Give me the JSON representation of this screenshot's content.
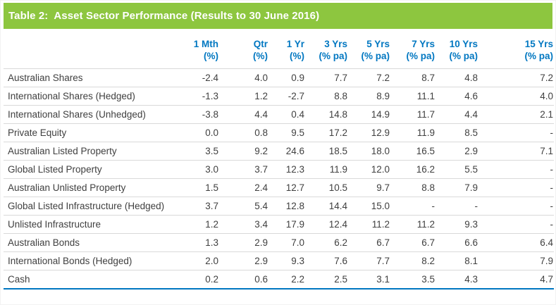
{
  "title": "Table 2:  Asset Sector Performance (Results to 30 June 2016)",
  "colors": {
    "title_bar_background": "#8DC63F",
    "title_text": "#FFFFFF",
    "column_header_text": "#0077C1",
    "row_divider": "#D9D9D9",
    "bottom_rule": "#0077C1",
    "body_text": "#3F3F3F"
  },
  "table": {
    "columns": [
      {
        "label": "1 Mth",
        "unit": "(%)"
      },
      {
        "label": "Qtr",
        "unit": "(%)"
      },
      {
        "label": "1 Yr",
        "unit": "(%)"
      },
      {
        "label": "3 Yrs",
        "unit": "(% pa)"
      },
      {
        "label": "5 Yrs",
        "unit": "(% pa)"
      },
      {
        "label": "7 Yrs",
        "unit": "(% pa)"
      },
      {
        "label": "10 Yrs",
        "unit": "(% pa)"
      },
      {
        "label": "15 Yrs",
        "unit": "(% pa)"
      }
    ],
    "rows": [
      {
        "name": "Australian Shares",
        "values": [
          "-2.4",
          "4.0",
          "0.9",
          "7.7",
          "7.2",
          "8.7",
          "4.8",
          "7.2"
        ]
      },
      {
        "name": "International Shares (Hedged)",
        "values": [
          "-1.3",
          "1.2",
          "-2.7",
          "8.8",
          "8.9",
          "11.1",
          "4.6",
          "4.0"
        ]
      },
      {
        "name": "International Shares (Unhedged)",
        "values": [
          "-3.8",
          "4.4",
          "0.4",
          "14.8",
          "14.9",
          "11.7",
          "4.4",
          "2.1"
        ]
      },
      {
        "name": "Private Equity",
        "values": [
          "0.0",
          "0.8",
          "9.5",
          "17.2",
          "12.9",
          "11.9",
          "8.5",
          "-"
        ]
      },
      {
        "name": "Australian Listed Property",
        "values": [
          "3.5",
          "9.2",
          "24.6",
          "18.5",
          "18.0",
          "16.5",
          "2.9",
          "7.1"
        ]
      },
      {
        "name": "Global Listed Property",
        "values": [
          "3.0",
          "3.7",
          "12.3",
          "11.9",
          "12.0",
          "16.2",
          "5.5",
          "-"
        ]
      },
      {
        "name": "Australian Unlisted Property",
        "values": [
          "1.5",
          "2.4",
          "12.7",
          "10.5",
          "9.7",
          "8.8",
          "7.9",
          "-"
        ]
      },
      {
        "name": "Global Listed Infrastructure (Hedged)",
        "values": [
          "3.7",
          "5.4",
          "12.8",
          "14.4",
          "15.0",
          "-",
          "-",
          "-"
        ]
      },
      {
        "name": "Unlisted Infrastructure",
        "values": [
          "1.2",
          "3.4",
          "17.9",
          "12.4",
          "11.2",
          "11.2",
          "9.3",
          "-"
        ]
      },
      {
        "name": "Australian Bonds",
        "values": [
          "1.3",
          "2.9",
          "7.0",
          "6.2",
          "6.7",
          "6.7",
          "6.6",
          "6.4"
        ]
      },
      {
        "name": "International Bonds (Hedged)",
        "values": [
          "2.0",
          "2.9",
          "9.3",
          "7.6",
          "7.7",
          "8.2",
          "8.1",
          "7.9"
        ]
      },
      {
        "name": "Cash",
        "values": [
          "0.2",
          "0.6",
          "2.2",
          "2.5",
          "3.1",
          "3.5",
          "4.3",
          "4.7"
        ]
      }
    ]
  }
}
